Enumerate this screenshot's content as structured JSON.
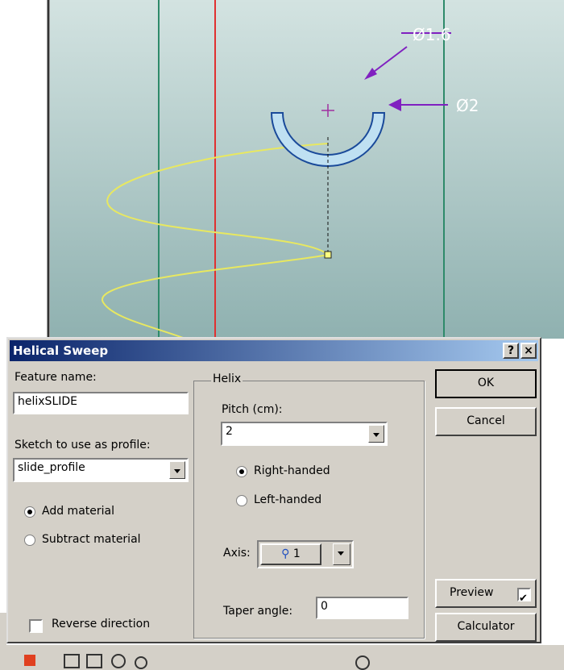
{
  "viewport": {
    "dimensions": [
      "Ø1.6",
      "Ø2"
    ]
  },
  "dialog": {
    "title": "Helical Sweep",
    "feature_name": {
      "label": "Feature name:",
      "value": "helixSLIDE"
    },
    "profile": {
      "label": "Sketch to use as profile:",
      "value": "slide_profile"
    },
    "material": [
      {
        "label": "Add material",
        "checked": true
      },
      {
        "label": "Subtract material",
        "checked": false
      }
    ],
    "reverse": {
      "label": "Reverse direction",
      "checked": false
    },
    "helix": {
      "title": "Helix",
      "pitch": {
        "label": "Pitch (cm):",
        "value": "2"
      },
      "handedness": [
        {
          "label": "Right-handed",
          "checked": true
        },
        {
          "label": "Left-handed",
          "checked": false
        }
      ],
      "axis": {
        "label": "Axis:",
        "value": "1"
      },
      "taper": {
        "label": "Taper angle:",
        "value": "0"
      }
    },
    "buttons": {
      "ok": "OK",
      "cancel": "Cancel",
      "preview": {
        "label": "Preview",
        "checked": true
      },
      "calculator": "Calculator"
    }
  }
}
